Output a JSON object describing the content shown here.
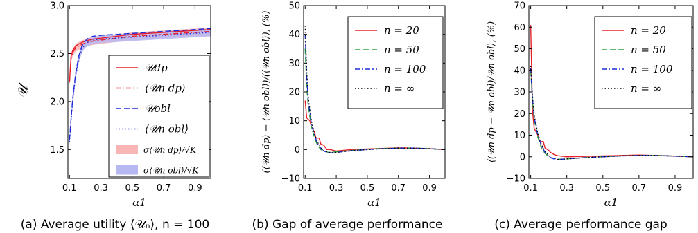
{
  "captions": [
    "(a) Average utility ⟨𝒰ₙ⟩, n = 100",
    "(b) Gap of average performance",
    "(c) Average performance gap"
  ],
  "colors": {
    "red": "#e8202a",
    "green": "#2e9e3e",
    "blue": "#1f2bd8",
    "black": "#000000",
    "red_band": "#f7b5b5",
    "blue_band": "#b7b7f2"
  },
  "chart_data": [
    {
      "type": "line",
      "xlabel": "α1",
      "ylabel": "𝒰",
      "xlim": [
        0.09,
        1.0
      ],
      "ylim": [
        1.2,
        3.0
      ],
      "xticks": [
        0.1,
        0.3,
        0.5,
        0.7,
        0.9
      ],
      "yticks": [
        1.5,
        2.0,
        2.5,
        3.0
      ],
      "legend_position": "lower-right",
      "series": [
        {
          "name": "𝒰dp",
          "color": "red",
          "dash": "solid",
          "x": [
            0.1,
            0.11,
            0.12,
            0.14,
            0.16,
            0.2,
            0.25,
            0.3,
            0.4,
            0.5,
            0.6,
            0.7,
            0.8,
            0.9,
            1.0
          ],
          "y": [
            2.2,
            2.47,
            2.53,
            2.58,
            2.6,
            2.63,
            2.65,
            2.66,
            2.68,
            2.7,
            2.71,
            2.72,
            2.73,
            2.74,
            2.75
          ]
        },
        {
          "name": "⟨𝒰n dp⟩",
          "color": "red",
          "dash": "dashdot",
          "x": [
            0.1,
            0.11,
            0.12,
            0.14,
            0.16,
            0.2,
            0.25,
            0.3,
            0.4,
            0.5,
            0.6,
            0.7,
            0.8,
            0.9,
            1.0
          ],
          "y": [
            2.2,
            2.45,
            2.51,
            2.56,
            2.58,
            2.61,
            2.63,
            2.64,
            2.66,
            2.68,
            2.69,
            2.7,
            2.71,
            2.72,
            2.73
          ]
        },
        {
          "name": "𝒰obl",
          "color": "blue",
          "dash": "dashed",
          "x": [
            0.1,
            0.11,
            0.12,
            0.14,
            0.16,
            0.18,
            0.2,
            0.22,
            0.25,
            0.3,
            0.4,
            0.5,
            0.6,
            0.7,
            0.8,
            0.9,
            1.0
          ],
          "y": [
            1.6,
            1.82,
            2.02,
            2.3,
            2.48,
            2.58,
            2.63,
            2.66,
            2.68,
            2.69,
            2.7,
            2.71,
            2.72,
            2.73,
            2.74,
            2.75,
            2.76
          ]
        },
        {
          "name": "⟨𝒰n obl⟩",
          "color": "blue",
          "dash": "dotted",
          "x": [
            0.1,
            0.11,
            0.12,
            0.14,
            0.16,
            0.18,
            0.2,
            0.22,
            0.25,
            0.3,
            0.4,
            0.5,
            0.6,
            0.7,
            0.8,
            0.9,
            1.0
          ],
          "y": [
            1.58,
            1.8,
            2.0,
            2.28,
            2.45,
            2.55,
            2.6,
            2.62,
            2.64,
            2.65,
            2.66,
            2.67,
            2.68,
            2.69,
            2.7,
            2.71,
            2.72
          ]
        }
      ],
      "bands": [
        {
          "name": "σ⟨𝒰n dp⟩/√K",
          "color": "red_band",
          "series_index": 1,
          "halfwidth": 0.04
        },
        {
          "name": "σ⟨𝒰n obl⟩/√K",
          "color": "blue_band",
          "series_index": 3,
          "halfwidth": 0.04
        }
      ]
    },
    {
      "type": "line",
      "xlabel": "α1",
      "ylabel": "(⟨𝒰n dp⟩ − ⟨𝒰n obl⟩)/(⟨𝒰n obl⟩), (%)",
      "xlim": [
        0.09,
        1.0
      ],
      "ylim": [
        -10,
        50
      ],
      "xticks": [
        0.1,
        0.3,
        0.5,
        0.7,
        0.9
      ],
      "yticks": [
        -10,
        0,
        10,
        20,
        30,
        40,
        50
      ],
      "legend_position": "upper-right",
      "series": [
        {
          "name": "n = 20",
          "color": "red",
          "dash": "solid",
          "x": [
            0.1,
            0.11,
            0.13,
            0.14,
            0.16,
            0.17,
            0.19,
            0.2,
            0.22,
            0.24,
            0.26,
            0.3,
            0.4,
            0.5,
            0.6,
            0.7,
            0.8,
            0.9,
            1.0
          ],
          "y": [
            17,
            11,
            10,
            8,
            6,
            4,
            4,
            2,
            1.5,
            0,
            0,
            -0.5,
            0,
            0.2,
            0.4,
            0.6,
            0.5,
            0.3,
            0
          ]
        },
        {
          "name": "n = 50",
          "color": "green",
          "dash": "dashed",
          "x": [
            0.1,
            0.11,
            0.12,
            0.14,
            0.16,
            0.18,
            0.2,
            0.22,
            0.25,
            0.3,
            0.4,
            0.5,
            0.6,
            0.7,
            0.8,
            0.9,
            1.0
          ],
          "y": [
            35,
            22,
            15,
            8,
            4,
            1.5,
            0,
            -0.5,
            -1,
            -0.8,
            -0.3,
            0.1,
            0.4,
            0.5,
            0.5,
            0.3,
            0
          ]
        },
        {
          "name": "n = 100",
          "color": "blue",
          "dash": "dashdot",
          "x": [
            0.1,
            0.11,
            0.12,
            0.14,
            0.16,
            0.18,
            0.2,
            0.22,
            0.25,
            0.3,
            0.4,
            0.5,
            0.6,
            0.7,
            0.8,
            0.9,
            1.0
          ],
          "y": [
            40,
            25,
            17,
            9,
            5,
            2,
            0.5,
            -0.5,
            -1.2,
            -1,
            -0.4,
            0,
            0.3,
            0.5,
            0.5,
            0.3,
            0
          ]
        },
        {
          "name": "n = ∞",
          "color": "black",
          "dash": "dotted",
          "x": [
            0.1,
            0.11,
            0.12,
            0.14,
            0.16,
            0.18,
            0.2,
            0.22,
            0.25,
            0.3,
            0.4,
            0.5,
            0.6,
            0.7,
            0.8,
            0.9,
            1.0
          ],
          "y": [
            43,
            27,
            18,
            10,
            5.5,
            2.5,
            0.8,
            -0.3,
            -1,
            -1,
            -0.4,
            0,
            0.3,
            0.5,
            0.5,
            0.3,
            0
          ]
        }
      ]
    },
    {
      "type": "line",
      "xlabel": "α1",
      "ylabel": "⟨(𝒰n dp − 𝒰n obl)/𝒰n obl⟩, (%)",
      "xlim": [
        0.09,
        1.0
      ],
      "ylim": [
        -10,
        70
      ],
      "xticks": [
        0.1,
        0.3,
        0.5,
        0.7,
        0.9
      ],
      "yticks": [
        -10,
        0,
        10,
        20,
        30,
        40,
        50,
        60,
        70
      ],
      "legend_position": "upper-right",
      "series": [
        {
          "name": "n = 20",
          "color": "red",
          "dash": "solid",
          "x": [
            0.1,
            0.11,
            0.12,
            0.14,
            0.15,
            0.17,
            0.18,
            0.2,
            0.21,
            0.23,
            0.25,
            0.3,
            0.4,
            0.5,
            0.6,
            0.7,
            0.8,
            0.9,
            1.0
          ],
          "y": [
            61,
            21,
            13,
            10,
            7,
            7,
            4,
            3,
            2,
            1,
            0.5,
            0,
            0.2,
            0.4,
            0.6,
            0.8,
            0.6,
            0.3,
            0
          ]
        },
        {
          "name": "n = 50",
          "color": "green",
          "dash": "dashed",
          "x": [
            0.1,
            0.11,
            0.12,
            0.14,
            0.16,
            0.18,
            0.2,
            0.22,
            0.25,
            0.3,
            0.4,
            0.5,
            0.6,
            0.7,
            0.8,
            0.9,
            1.0
          ],
          "y": [
            40,
            26,
            17,
            9,
            4,
            1.5,
            0,
            -0.8,
            -1.2,
            -1,
            -0.4,
            0,
            0.4,
            0.6,
            0.6,
            0.3,
            0
          ]
        },
        {
          "name": "n = 100",
          "color": "blue",
          "dash": "dashdot",
          "x": [
            0.1,
            0.11,
            0.12,
            0.14,
            0.16,
            0.18,
            0.2,
            0.22,
            0.25,
            0.3,
            0.4,
            0.5,
            0.6,
            0.7,
            0.8,
            0.9,
            1.0
          ],
          "y": [
            41,
            27,
            18,
            10,
            5,
            2,
            0.3,
            -0.8,
            -1.3,
            -1,
            -0.4,
            0,
            0.4,
            0.6,
            0.6,
            0.3,
            0
          ]
        },
        {
          "name": "n = ∞",
          "color": "black",
          "dash": "dotted",
          "x": [
            0.1,
            0.11,
            0.12,
            0.14,
            0.16,
            0.18,
            0.2,
            0.22,
            0.25,
            0.3,
            0.4,
            0.5,
            0.6,
            0.7,
            0.8,
            0.9,
            1.0
          ],
          "y": [
            42,
            28,
            19,
            10.5,
            5.5,
            2.5,
            0.5,
            -0.6,
            -1.2,
            -1,
            -0.4,
            0,
            0.4,
            0.6,
            0.6,
            0.3,
            0
          ]
        }
      ]
    }
  ]
}
